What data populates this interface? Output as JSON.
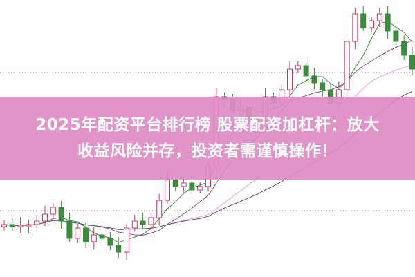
{
  "headline": {
    "line1": "2025年配资平台排行榜 股票配资加杠杆：放大",
    "line2": "收益风险并存，投资者需谨慎操作！"
  },
  "colors": {
    "banner": "#de8cc4",
    "up_candle": "#d9305a",
    "down_candle": "#3d8a3d",
    "ma_lines": [
      "#3d8a3d",
      "#8a4a9a",
      "#f0a0d8",
      "#555577"
    ],
    "grid": "#b07aa0"
  },
  "chart_data": {
    "type": "candlestick",
    "grid": true,
    "closes": [
      75,
      72,
      74,
      75,
      80,
      90,
      100,
      80,
      55,
      70,
      50,
      60,
      55,
      45,
      35,
      70,
      80,
      75,
      85,
      110,
      140,
      130,
      135,
      125,
      130,
      160,
      260,
      255,
      240,
      245,
      230,
      225,
      260,
      250,
      270,
      300,
      305,
      290,
      280,
      270,
      250,
      270,
      340,
      380,
      360,
      370,
      380,
      355,
      340,
      320,
      300
    ],
    "moving_average_periods": [
      5,
      10,
      20,
      30
    ]
  }
}
